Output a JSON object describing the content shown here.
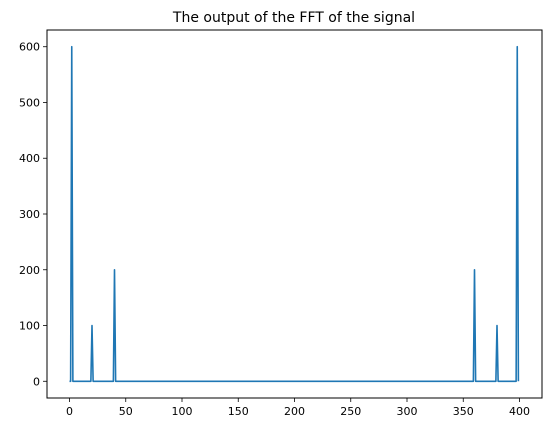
{
  "chart_data": {
    "type": "line",
    "title": "The output of the FFT of the signal",
    "xlabel": "",
    "ylabel": "",
    "xlim": [
      -20,
      420
    ],
    "ylim": [
      -30,
      630
    ],
    "xticks": [
      0,
      50,
      100,
      150,
      200,
      250,
      300,
      350,
      400
    ],
    "yticks": [
      0,
      100,
      200,
      300,
      400,
      500,
      600
    ],
    "grid": false,
    "series": [
      {
        "color": "#1f77b4",
        "points": [
          [
            0,
            0
          ],
          [
            1,
            0
          ],
          [
            2,
            600
          ],
          [
            3,
            0
          ],
          [
            19,
            0
          ],
          [
            20,
            100
          ],
          [
            21,
            0
          ],
          [
            39,
            0
          ],
          [
            40,
            200
          ],
          [
            41,
            0
          ],
          [
            359,
            0
          ],
          [
            360,
            200
          ],
          [
            361,
            0
          ],
          [
            379,
            0
          ],
          [
            380,
            100
          ],
          [
            381,
            0
          ],
          [
            397,
            0
          ],
          [
            398,
            600
          ],
          [
            399,
            0
          ]
        ]
      }
    ]
  }
}
